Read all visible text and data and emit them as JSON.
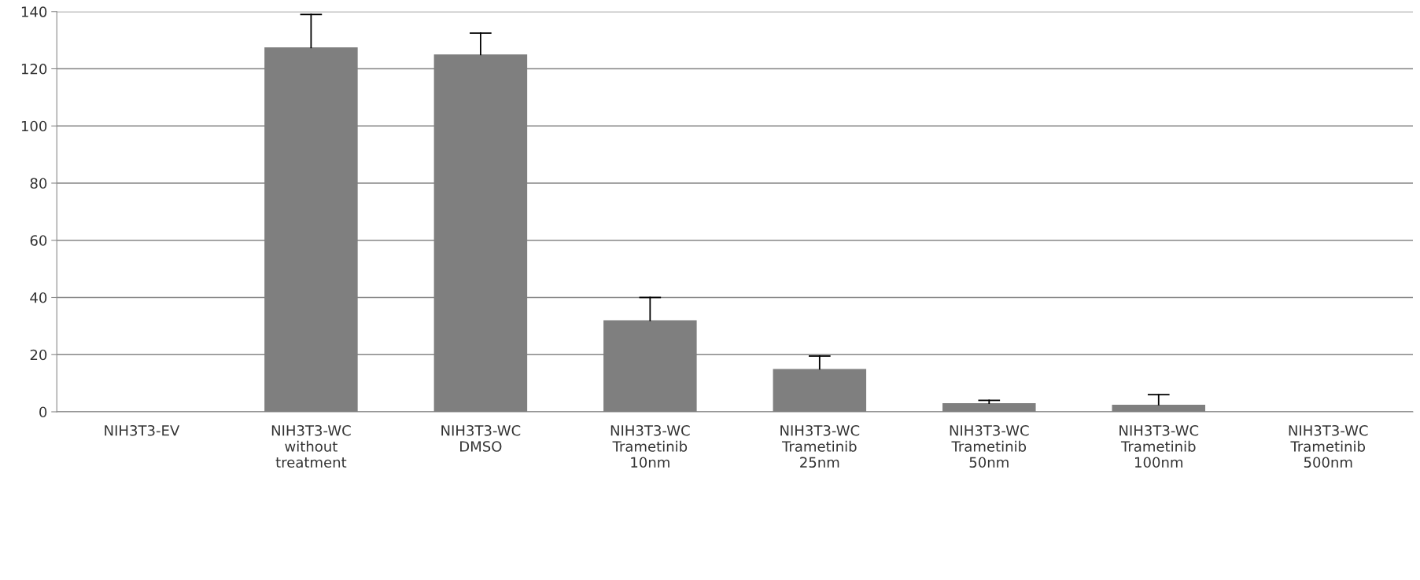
{
  "chart_data": {
    "type": "bar",
    "categories": [
      "NIH3T3-EV",
      "NIH3T3-WC\nwithout\ntreatment",
      "NIH3T3-WC\nDMSO",
      "NIH3T3-WC\nTrametinib\n10nm",
      "NIH3T3-WC\nTrametinib\n25nm",
      "NIH3T3-WC\nTrametinib\n50nm",
      "NIH3T3-WC\nTrametinib\n100nm",
      "NIH3T3-WC\nTrametinib\n500nm"
    ],
    "values": [
      0,
      127.5,
      125,
      32,
      15,
      3,
      2.5,
      0
    ],
    "errors": [
      null,
      [
        127.5,
        139
      ],
      [
        125,
        132.5
      ],
      [
        32,
        40
      ],
      [
        15,
        19.5
      ],
      [
        3,
        4
      ],
      [
        2.5,
        6
      ],
      null
    ],
    "color": "#7f7f7f",
    "ylim": [
      0,
      140
    ],
    "yticks": [
      0,
      20,
      40,
      60,
      80,
      100,
      120,
      140
    ],
    "grid": "y"
  }
}
